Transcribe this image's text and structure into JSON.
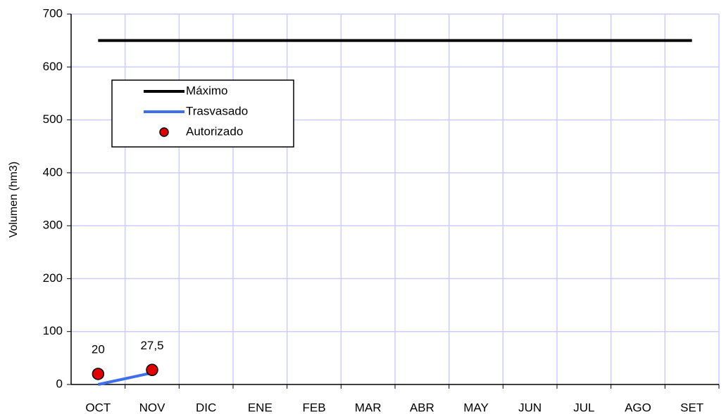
{
  "chart_data": {
    "type": "line",
    "y_label": "Volumen (hm3)",
    "categories": [
      "OCT",
      "NOV",
      "DIC",
      "ENE",
      "FEB",
      "MAR",
      "ABR",
      "MAY",
      "JUN",
      "JUL",
      "AGO",
      "SET"
    ],
    "series": [
      {
        "name": "Máximo",
        "color": "#000000",
        "mode": "line",
        "values": [
          650,
          650,
          650,
          650,
          650,
          650,
          650,
          650,
          650,
          650,
          650,
          650
        ]
      },
      {
        "name": "Trasvasado",
        "color": "#3f6fe8",
        "mode": "line",
        "values": [
          0,
          22,
          null,
          null,
          null,
          null,
          null,
          null,
          null,
          null,
          null,
          null
        ]
      },
      {
        "name": "Autorizado",
        "color": "#e00000",
        "mode": "markers",
        "values": [
          20,
          27.5,
          null,
          null,
          null,
          null,
          null,
          null,
          null,
          null,
          null,
          null
        ],
        "value_labels": [
          "20",
          "27,5",
          null,
          null,
          null,
          null,
          null,
          null,
          null,
          null,
          null,
          null
        ]
      }
    ],
    "ylim": [
      0,
      700
    ],
    "yticks": [
      0,
      100,
      200,
      300,
      400,
      500,
      600,
      700
    ],
    "grid": true
  }
}
